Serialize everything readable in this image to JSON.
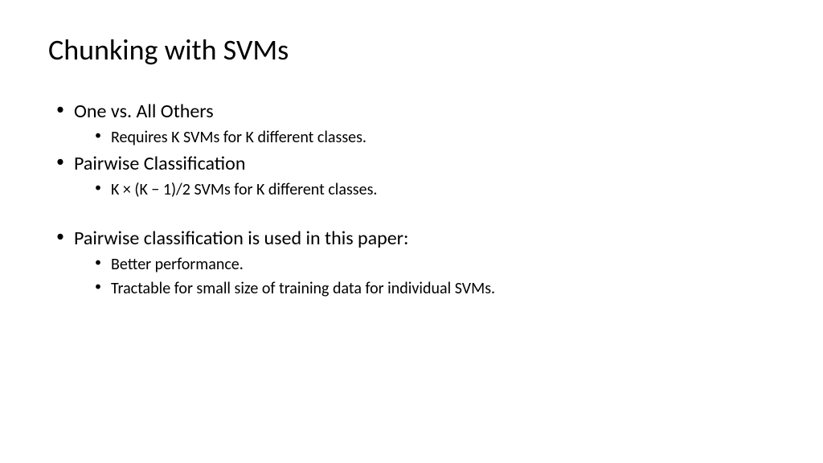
{
  "slide": {
    "title": "Chunking with SVMs",
    "bullets": [
      {
        "text": "One vs. All Others",
        "sub": [
          "Requires K SVMs for K different classes."
        ]
      },
      {
        "text": "Pairwise Classification",
        "sub": [
          "K × (K − 1)/2 SVMs for K different classes."
        ]
      },
      {
        "text": "Pairwise classification is used in this paper:",
        "sub": [
          "Better performance.",
          "Tractable for small size of training data for individual SVMs."
        ]
      }
    ],
    "styling": {
      "background_color": "#ffffff",
      "text_color": "#000000",
      "font_family": "Calibri",
      "title_fontsize": 36,
      "level1_fontsize": 24,
      "level2_fontsize": 20,
      "gap_after_index": 1
    }
  }
}
